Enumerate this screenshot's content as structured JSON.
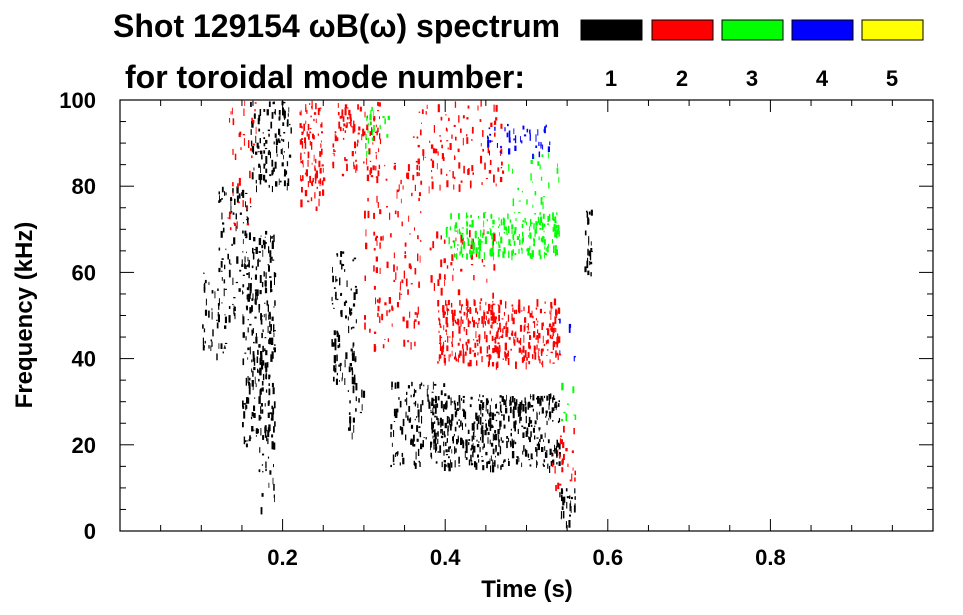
{
  "chart_data": {
    "type": "heatmap",
    "title_line1": "Shot 129154 ωB(ω) spectrum",
    "title_line2": "for toroidal mode number:",
    "xlabel": "Time (s)",
    "ylabel": "Frequency (kHz)",
    "xlim": [
      0,
      1.0
    ],
    "ylim": [
      0,
      100
    ],
    "x_ticks": [
      0.2,
      0.4,
      0.6,
      0.8
    ],
    "x_tick_labels": [
      "0.2",
      "0.4",
      "0.6",
      "0.8"
    ],
    "y_ticks": [
      0,
      20,
      40,
      60,
      80,
      100
    ],
    "y_tick_labels": [
      "0",
      "20",
      "40",
      "60",
      "80",
      "100"
    ],
    "legend": [
      {
        "label": "1",
        "color": "#000000"
      },
      {
        "label": "2",
        "color": "#ff0000"
      },
      {
        "label": "3",
        "color": "#00ff00"
      },
      {
        "label": "4",
        "color": "#0000ff"
      },
      {
        "label": "5",
        "color": "#ffff00"
      }
    ],
    "regions": [
      {
        "mode": "1",
        "t": [
          0.1,
          0.13
        ],
        "f": [
          40,
          60
        ],
        "density": 0.25
      },
      {
        "mode": "1",
        "t": [
          0.12,
          0.16
        ],
        "f": [
          50,
          80
        ],
        "density": 0.3
      },
      {
        "mode": "1",
        "t": [
          0.15,
          0.19
        ],
        "f": [
          20,
          70
        ],
        "density": 0.45
      },
      {
        "mode": "1",
        "t": [
          0.16,
          0.21
        ],
        "f": [
          80,
          100
        ],
        "density": 0.45
      },
      {
        "mode": "1",
        "t": [
          0.17,
          0.19
        ],
        "f": [
          5,
          40
        ],
        "density": 0.25
      },
      {
        "mode": "1",
        "t": [
          0.26,
          0.29
        ],
        "f": [
          35,
          65
        ],
        "density": 0.4
      },
      {
        "mode": "1",
        "t": [
          0.28,
          0.3
        ],
        "f": [
          20,
          35
        ],
        "density": 0.2
      },
      {
        "mode": "1",
        "t": [
          0.33,
          0.4
        ],
        "f": [
          15,
          35
        ],
        "density": 0.35
      },
      {
        "mode": "1",
        "t": [
          0.38,
          0.54
        ],
        "f": [
          15,
          32
        ],
        "density": 0.65
      },
      {
        "mode": "1",
        "t": [
          0.54,
          0.56
        ],
        "f": [
          2,
          10
        ],
        "density": 0.6
      },
      {
        "mode": "1",
        "t": [
          0.57,
          0.58
        ],
        "f": [
          60,
          75
        ],
        "density": 0.5
      },
      {
        "mode": "2",
        "t": [
          0.13,
          0.17
        ],
        "f": [
          70,
          100
        ],
        "density": 0.12
      },
      {
        "mode": "2",
        "t": [
          0.22,
          0.25
        ],
        "f": [
          75,
          100
        ],
        "density": 0.5
      },
      {
        "mode": "2",
        "t": [
          0.26,
          0.32
        ],
        "f": [
          82,
          100
        ],
        "density": 0.35
      },
      {
        "mode": "2",
        "t": [
          0.3,
          0.37
        ],
        "f": [
          42,
          88
        ],
        "density": 0.15
      },
      {
        "mode": "2",
        "t": [
          0.36,
          0.47
        ],
        "f": [
          80,
          100
        ],
        "density": 0.2
      },
      {
        "mode": "2",
        "t": [
          0.38,
          0.46
        ],
        "f": [
          55,
          70
        ],
        "density": 0.15
      },
      {
        "mode": "2",
        "t": [
          0.39,
          0.54
        ],
        "f": [
          39,
          54
        ],
        "density": 0.65
      },
      {
        "mode": "2",
        "t": [
          0.53,
          0.56
        ],
        "f": [
          10,
          25
        ],
        "density": 0.2
      },
      {
        "mode": "3",
        "t": [
          0.3,
          0.33
        ],
        "f": [
          88,
          100
        ],
        "density": 0.2
      },
      {
        "mode": "3",
        "t": [
          0.4,
          0.54
        ],
        "f": [
          64,
          74
        ],
        "density": 0.65
      },
      {
        "mode": "3",
        "t": [
          0.47,
          0.54
        ],
        "f": [
          75,
          88
        ],
        "density": 0.1
      },
      {
        "mode": "3",
        "t": [
          0.54,
          0.56
        ],
        "f": [
          25,
          35
        ],
        "density": 0.1
      },
      {
        "mode": "4",
        "t": [
          0.45,
          0.53
        ],
        "f": [
          87,
          95
        ],
        "density": 0.25
      },
      {
        "mode": "4",
        "t": [
          0.54,
          0.56
        ],
        "f": [
          40,
          50
        ],
        "density": 0.05
      }
    ]
  }
}
